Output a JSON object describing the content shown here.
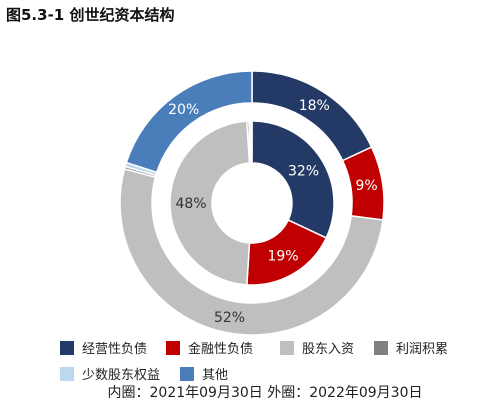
{
  "title": "图5.3-1 创世纪资本结构",
  "caption": "内圈：2021年09月30日 外圈：2022年09月30日",
  "colors": {
    "经营性负债": "#243a66",
    "金融性负债": "#c00000",
    "股东入资": "#bfbfbf",
    "利润积累": "#808080",
    "少数股东权益": "#bdd7ee",
    "其他": "#4a7ebb"
  },
  "chart_data": {
    "type": "pie",
    "legend": [
      "经营性负债",
      "金融性负债",
      "股东入资",
      "利润积累",
      "少数股东权益",
      "其他"
    ],
    "inner": {
      "name": "2021年09月30日",
      "slices": [
        {
          "label": "经营性负债",
          "value": 32,
          "text": "32%"
        },
        {
          "label": "金融性负债",
          "value": 19,
          "text": "19%"
        },
        {
          "label": "股东入资",
          "value": 48,
          "text": "48%"
        },
        {
          "label": "利润积累",
          "value": 0.4,
          "text": ""
        },
        {
          "label": "少数股东权益",
          "value": 0.4,
          "text": ""
        },
        {
          "label": "其他",
          "value": 0.2,
          "text": ""
        }
      ]
    },
    "outer": {
      "name": "2022年09月30日",
      "slices": [
        {
          "label": "经营性负债",
          "value": 18,
          "text": "18%"
        },
        {
          "label": "金融性负债",
          "value": 9,
          "text": "9%"
        },
        {
          "label": "股东入资",
          "value": 52,
          "text": "52%"
        },
        {
          "label": "利润积累",
          "value": 0.3,
          "text": ""
        },
        {
          "label": "少数股东权益",
          "value": 0.5,
          "text": ""
        },
        {
          "label": "其他",
          "value": 20,
          "text": "20%"
        }
      ]
    }
  }
}
